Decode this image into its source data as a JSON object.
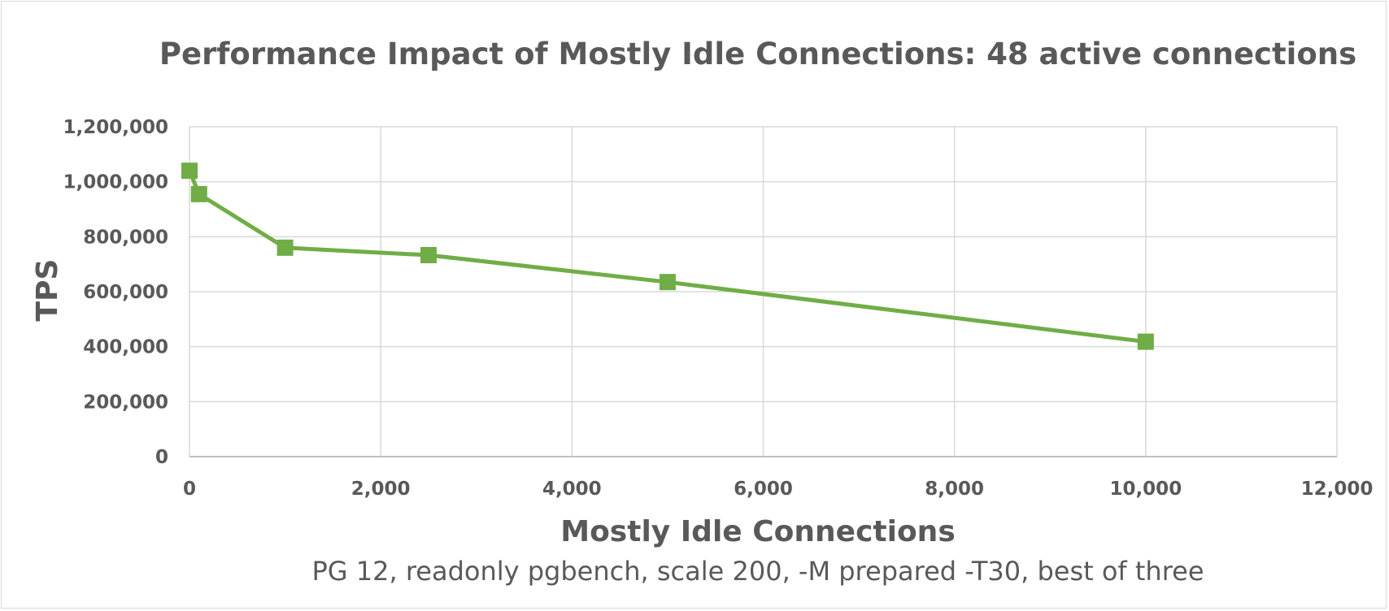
{
  "chart_data": {
    "type": "line",
    "title": "Performance Impact of Mostly Idle Connections: 48 active connections",
    "xlabel": "Mostly Idle Connections",
    "ylabel": "TPS",
    "subtitle": "PG 12, readonly pgbench, scale 200, -M prepared -T30, best of three",
    "xlim": [
      0,
      12000
    ],
    "ylim": [
      0,
      1200000
    ],
    "x_ticks": [
      0,
      2000,
      4000,
      6000,
      8000,
      10000,
      12000
    ],
    "x_tick_labels": [
      "0",
      "2,000",
      "4,000",
      "6,000",
      "8,000",
      "10,000",
      "12,000"
    ],
    "y_ticks": [
      0,
      200000,
      400000,
      600000,
      800000,
      1000000,
      1200000
    ],
    "y_tick_labels": [
      "0",
      "200,000",
      "400,000",
      "600,000",
      "800,000",
      "1,000,000",
      "1,200,000"
    ],
    "grid": true,
    "legend": "none",
    "series": [
      {
        "color": "#70ad47",
        "marker": "square",
        "x": [
          0,
          100,
          1000,
          2500,
          5000,
          10000
        ],
        "y": [
          1040000,
          955000,
          760000,
          733000,
          635000,
          418000
        ]
      }
    ]
  }
}
